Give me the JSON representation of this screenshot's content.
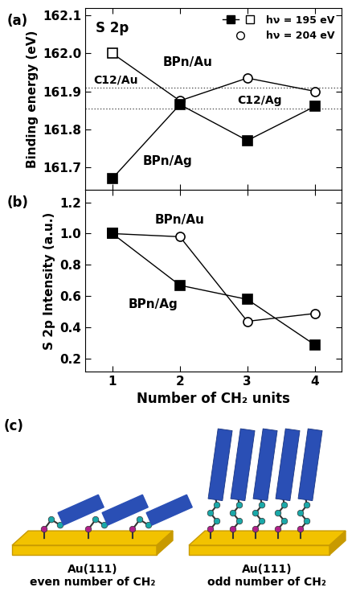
{
  "chart_data": [
    {
      "type": "line",
      "label": "(a)",
      "subtitle": "S 2p",
      "x": [
        1,
        2,
        3,
        4
      ],
      "xlim": [
        0.6,
        4.4
      ],
      "xticks": [
        1,
        2,
        3,
        4
      ],
      "ylabel": "Binding energy (eV)",
      "ylim": [
        161.64,
        162.12
      ],
      "yticks": [
        161.7,
        161.8,
        161.9,
        162.0,
        162.1
      ],
      "tick_labels": "y",
      "legend": "upper right",
      "series": [
        {
          "name": "BPn/Au",
          "color": "#000000",
          "marker": "open",
          "line_style": "solid",
          "values": [
            162.0,
            161.875,
            161.935,
            161.9
          ],
          "photon_energy": [
            "hν = 195 eV",
            "hν = 204 eV",
            "hν = 204 eV",
            "hν = 204 eV"
          ]
        },
        {
          "name": "BPn/Ag",
          "color": "#000000",
          "marker": "filled",
          "line_style": "solid",
          "values": [
            161.67,
            161.865,
            161.77,
            161.86
          ],
          "photon_energy": [
            "hν = 195 eV",
            "hν = 195 eV",
            "hν = 195 eV",
            "hν = 195 eV"
          ]
        }
      ],
      "reference_lines": [
        {
          "name": "C12/Au",
          "value": 161.91,
          "line_style": "dotted"
        },
        {
          "name": "C12/Ag",
          "value": 161.855,
          "line_style": "dotted"
        }
      ]
    },
    {
      "type": "line",
      "label": "(b)",
      "x": [
        1,
        2,
        3,
        4
      ],
      "xlim": [
        0.6,
        4.4
      ],
      "xticks": [
        1,
        2,
        3,
        4
      ],
      "xlabel": "Number of CH₂ units",
      "ylabel": "S 2p Intensity (a.u.)",
      "ylim": [
        0.12,
        1.28
      ],
      "yticks": [
        0.2,
        0.4,
        0.6,
        0.8,
        1.0,
        1.2
      ],
      "series": [
        {
          "name": "BPn/Au",
          "color": "#000000",
          "marker": "open",
          "line_style": "solid",
          "values": [
            1.0,
            0.98,
            0.44,
            0.49
          ],
          "photon_energy": [
            "hν = 195 eV",
            "hν = 204 eV",
            "hν = 204 eV",
            "hν = 204 eV"
          ]
        },
        {
          "name": "BPn/Ag",
          "color": "#000000",
          "marker": "filled",
          "line_style": "solid",
          "values": [
            1.0,
            0.67,
            0.58,
            0.29
          ],
          "photon_energy": [
            "hν = 195 eV",
            "hν = 195 eV",
            "hν = 195 eV",
            "hν = 195 eV"
          ]
        }
      ]
    }
  ],
  "diagram": {
    "label": "(c)",
    "panels": [
      {
        "substrate": "Au(111)",
        "caption": "even number of CH₂"
      },
      {
        "substrate": "Au(111)",
        "caption": "odd number of CH₂"
      }
    ]
  }
}
